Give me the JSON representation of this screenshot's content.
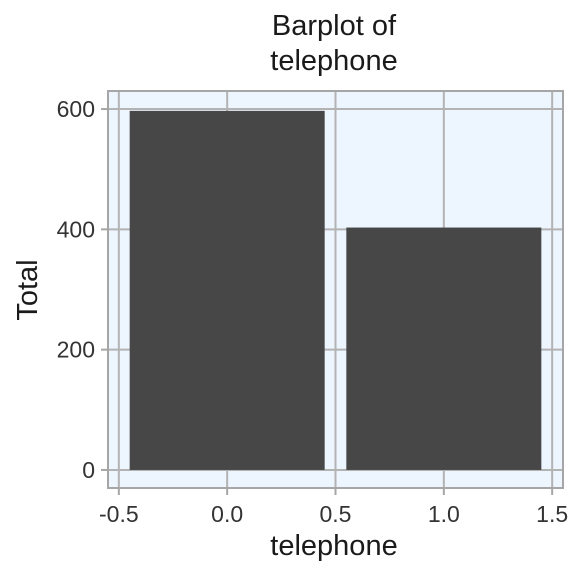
{
  "chart_data": {
    "type": "bar",
    "title_lines": [
      "Barplot of",
      "telephone"
    ],
    "xlabel": "telephone",
    "ylabel": "Total",
    "x": [
      0,
      1
    ],
    "bar_width": 0.9,
    "values": [
      597,
      403
    ],
    "xlim": [
      -0.55,
      1.55
    ],
    "ylim": [
      -30,
      630
    ],
    "xticks": [
      -0.5,
      0.0,
      0.5,
      1.0,
      1.5
    ],
    "xtick_labels": [
      "-0.5",
      "0.0",
      "0.5",
      "1.0",
      "1.5"
    ],
    "yticks": [
      0,
      200,
      400,
      600
    ],
    "ytick_labels": [
      "0",
      "200",
      "400",
      "600"
    ],
    "grid": true,
    "colors": {
      "bar": "#474747",
      "panel": "#edf5ff",
      "grid": "#b3b3b3",
      "border": "#a6a6a6"
    }
  }
}
